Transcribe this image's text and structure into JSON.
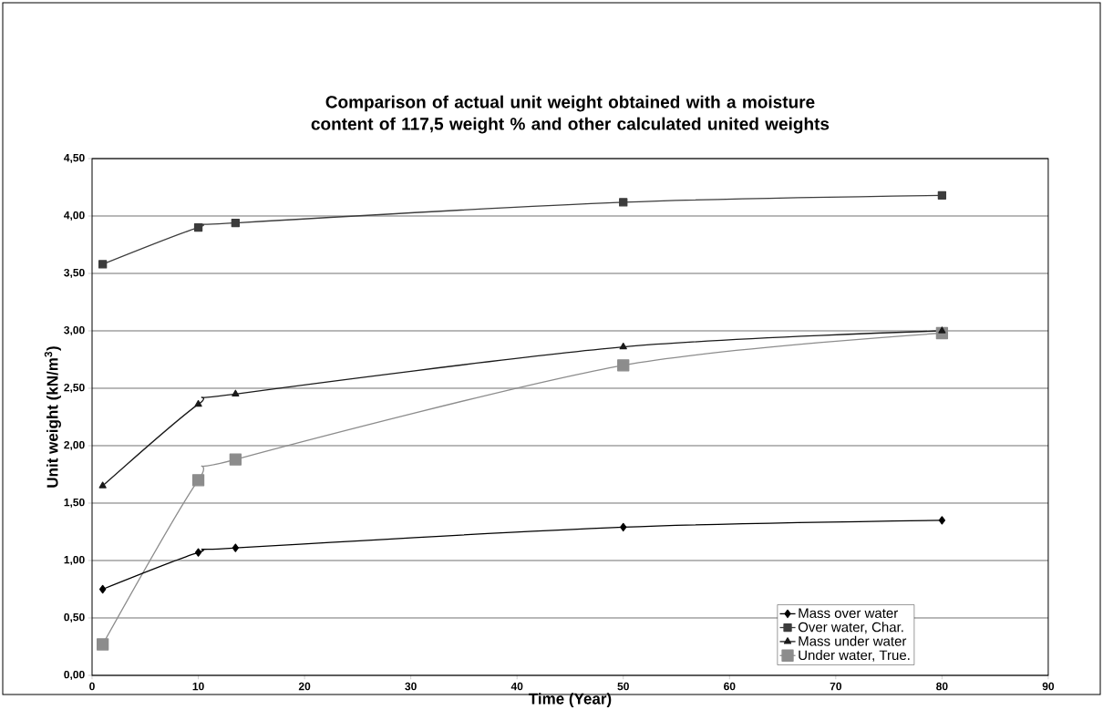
{
  "chart_data": {
    "type": "line",
    "title": "Comparison of actual unit weight obtained with a moisture content of 117,5 weight % and other calculated united weights",
    "xlabel": "Time (Year)",
    "ylabel": "Unit weight (kN/m$^{3}$)",
    "x": [
      1,
      10,
      13.5,
      50,
      80
    ],
    "series": [
      {
        "name": "Mass over water",
        "color": "#000000",
        "marker": "diamond",
        "values": [
          0.75,
          1.07,
          1.11,
          1.29,
          1.35
        ]
      },
      {
        "name": "Over water, Char.",
        "color": "#3c3c3c",
        "marker": "square",
        "values": [
          3.58,
          3.9,
          3.94,
          4.12,
          4.18
        ]
      },
      {
        "name": "Mass under water",
        "color": "#1a1a1a",
        "marker": "triangle",
        "values": [
          1.65,
          2.36,
          2.45,
          2.86,
          3.0
        ]
      },
      {
        "name": "Under water, True.",
        "color": "#8c8c8c",
        "marker": "square",
        "values": [
          0.27,
          1.7,
          1.88,
          2.7,
          2.98
        ]
      }
    ],
    "xlim": [
      0,
      90
    ],
    "xticks": [
      0,
      10,
      20,
      30,
      40,
      50,
      60,
      70,
      80,
      90
    ],
    "ylim": [
      0,
      4.5
    ],
    "yticks": [
      {
        "value": 0,
        "label": "0,00"
      },
      {
        "value": 0.5,
        "label": "0,50"
      },
      {
        "value": 1,
        "label": "1,00"
      },
      {
        "value": 1.5,
        "label": "1,50"
      },
      {
        "value": 2,
        "label": "2,00"
      },
      {
        "value": 2.5,
        "label": "2,50"
      },
      {
        "value": 3,
        "label": "3,00"
      },
      {
        "value": 3.5,
        "label": "3,50"
      },
      {
        "value": 4,
        "label": "4,00"
      },
      {
        "value": 4.5,
        "label": "4,50"
      }
    ],
    "grid": "y",
    "legend": "bottom right",
    "line_style": "solid"
  }
}
